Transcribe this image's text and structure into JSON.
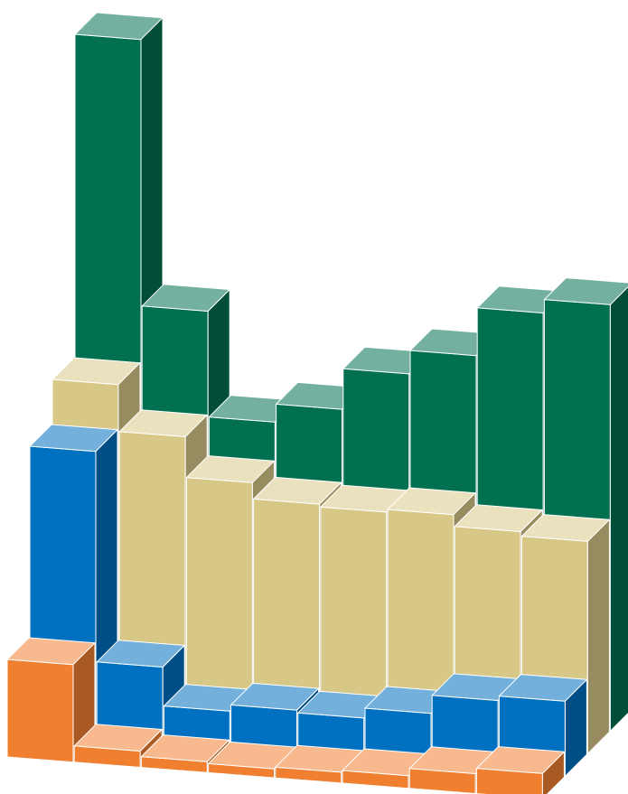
{
  "chart_data": {
    "type": "bar3d",
    "series": [
      {
        "color": "#f08030",
        "values": [
          108,
          18,
          12,
          10,
          12,
          14,
          22,
          28
        ]
      },
      {
        "color": "#0070c0",
        "values": [
          319,
          86,
          43,
          50,
          47,
          58,
          78,
          83
        ]
      },
      {
        "color": "#d8c888",
        "values": [
          368,
          316,
          271,
          253,
          250,
          253,
          240,
          235
        ]
      },
      {
        "color": "#007050",
        "values": [
          725,
          430,
          313,
          333,
          378,
          404,
          457,
          472
        ]
      }
    ]
  }
}
